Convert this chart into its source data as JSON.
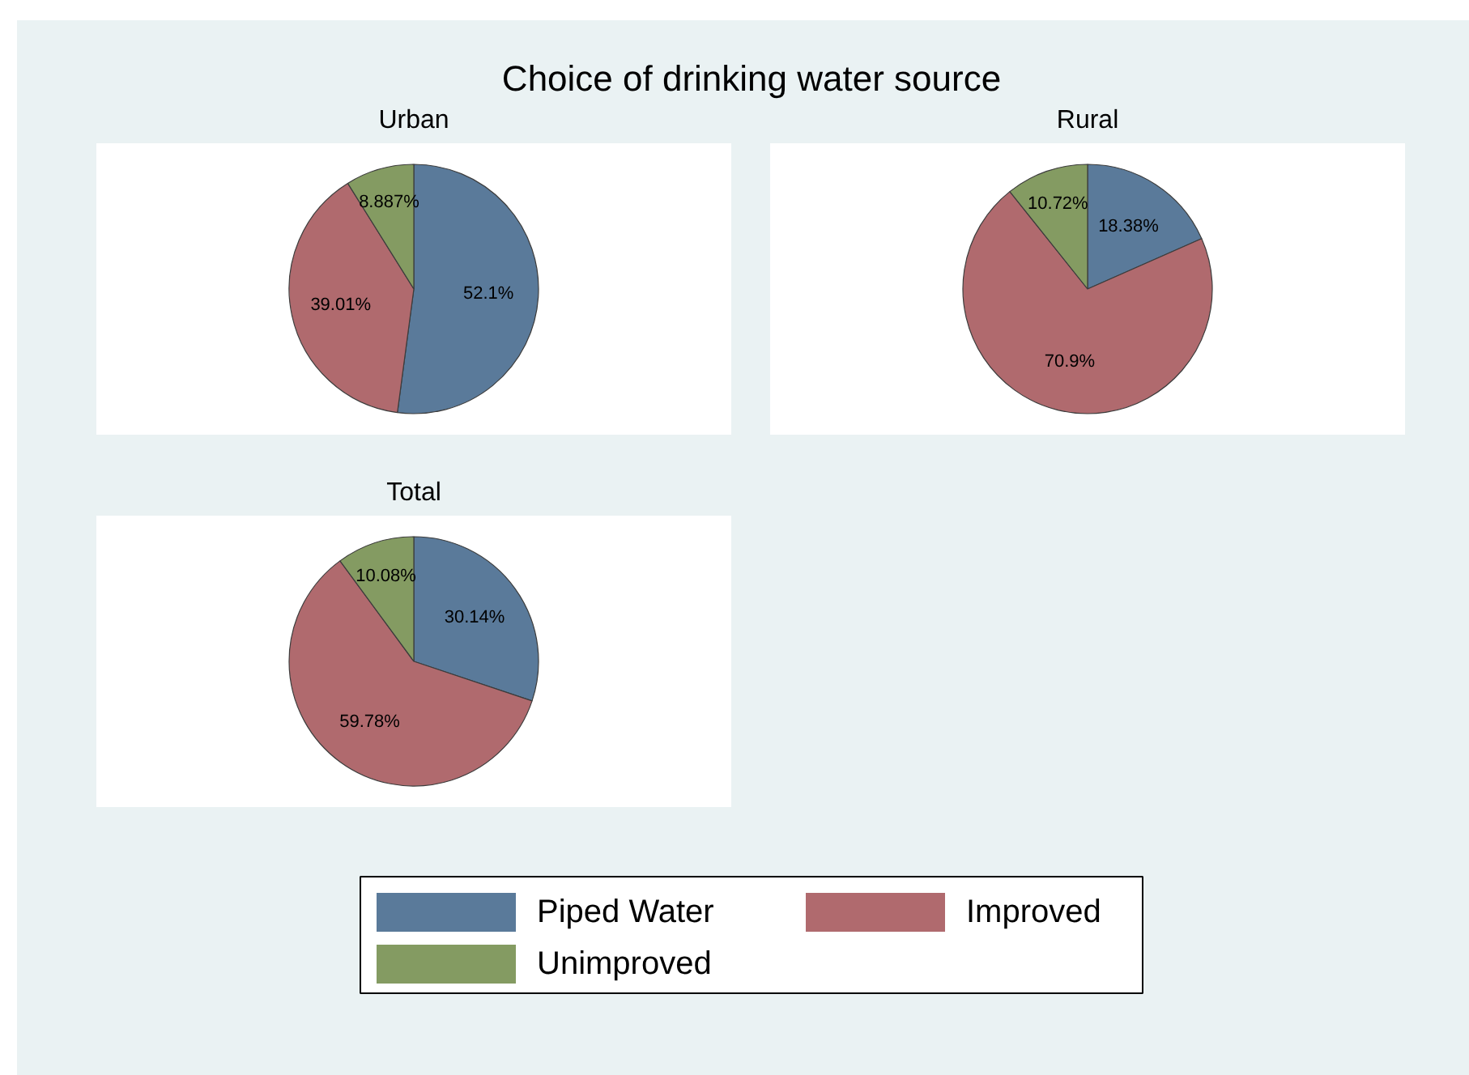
{
  "chart_data": [
    {
      "type": "other",
      "title": "Choice of drinking water source"
    },
    {
      "type": "pie",
      "title": "Urban",
      "categories": [
        "Piped Water",
        "Improved",
        "Unimproved"
      ],
      "values": [
        52.1,
        39.01,
        8.887
      ],
      "value_labels": [
        "52.1%",
        "39.01%",
        "8.887%"
      ],
      "colors": [
        "#5a7a9a",
        "#b06a6e",
        "#849b62"
      ],
      "legend": "bottom"
    },
    {
      "type": "pie",
      "title": "Rural",
      "categories": [
        null,
        null,
        null
      ],
      "values": [
        18.38,
        70.9,
        10.72
      ],
      "value_labels": [
        "18.38%",
        "70.9%",
        "10.72%"
      ],
      "colors": [
        "#5a7a9a",
        "#b06a6e",
        "#849b62"
      ]
    },
    {
      "type": "pie",
      "title": "Total",
      "categories": [
        null,
        null,
        null
      ],
      "values": [
        30.14,
        59.78,
        10.08
      ],
      "value_labels": [
        "30.14%",
        "59.78%",
        "10.08%"
      ],
      "colors": [
        "#5a7a9a",
        "#b06a6e",
        "#849b62"
      ]
    }
  ]
}
